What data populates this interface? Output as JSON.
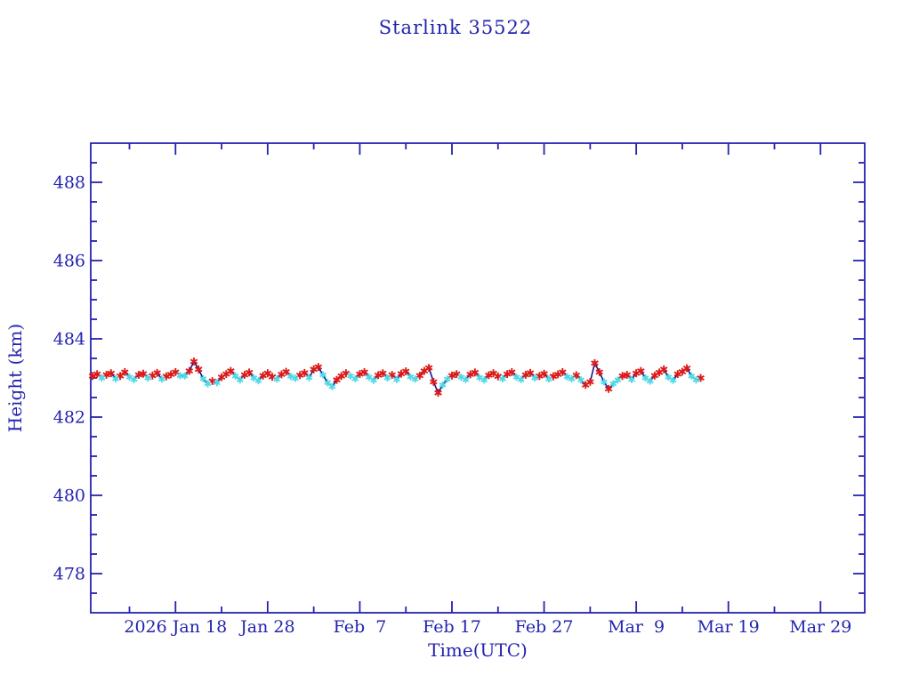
{
  "page": {
    "background": "#ffffff"
  },
  "chart_data": {
    "type": "line",
    "title": "Starlink 35522",
    "xlabel": "Time(UTC)",
    "ylabel": "Height (km)",
    "grid": false,
    "legend": null,
    "x_unit": "day of year 2026, UTC",
    "x_domain": [
      8.8,
      92.8
    ],
    "y_domain": [
      477,
      489
    ],
    "y_major_ticks": [
      478,
      480,
      482,
      484,
      486,
      488
    ],
    "y_minor_step": 0.5,
    "x_major_ticks": [
      {
        "t": 18,
        "label": "2026 Jan 18"
      },
      {
        "t": 28,
        "label": "Jan 28"
      },
      {
        "t": 38,
        "label": "Feb  7"
      },
      {
        "t": 48,
        "label": "Feb 17"
      },
      {
        "t": 58,
        "label": "Feb 27"
      },
      {
        "t": 68,
        "label": "Mar  9"
      },
      {
        "t": 78,
        "label": "Mar 19"
      },
      {
        "t": 88,
        "label": "Mar 29"
      }
    ],
    "x_minor_ticks": [
      13,
      23,
      33,
      43,
      53,
      63,
      73,
      83
    ],
    "style": {
      "frame_color": "#2323b0",
      "text_color": "#2323b0",
      "line_color": "#17178c",
      "background": "#ffffff"
    },
    "marker_colors": {
      "r": "#dc1a1a",
      "c": "#52d9e6"
    },
    "marker_shape": "asterisk",
    "series": [
      {
        "name": "measured height",
        "points_format": [
          "day_of_year_2026",
          "height_km",
          "marker_color_key"
        ],
        "points": [
          [
            9,
            483.05,
            "r"
          ],
          [
            9.5,
            483.1,
            "r"
          ],
          [
            10,
            483,
            "c"
          ],
          [
            10.5,
            483.08,
            "r"
          ],
          [
            11,
            483.12,
            "r"
          ],
          [
            11.5,
            482.98,
            "c"
          ],
          [
            12,
            483.05,
            "r"
          ],
          [
            12.5,
            483.15,
            "r"
          ],
          [
            13,
            483.02,
            "c"
          ],
          [
            13.5,
            482.96,
            "c"
          ],
          [
            14,
            483.08,
            "r"
          ],
          [
            14.5,
            483.11,
            "r"
          ],
          [
            15,
            483,
            "c"
          ],
          [
            15.5,
            483.06,
            "r"
          ],
          [
            16,
            483.13,
            "r"
          ],
          [
            16.5,
            482.97,
            "c"
          ],
          [
            17,
            483.04,
            "r"
          ],
          [
            17.5,
            483.09,
            "r"
          ],
          [
            18,
            483.15,
            "r"
          ],
          [
            18.5,
            483.06,
            "c"
          ],
          [
            19,
            483.05,
            "c"
          ],
          [
            19.5,
            483.18,
            "r"
          ],
          [
            20,
            483.42,
            "r"
          ],
          [
            20.5,
            483.22,
            "r"
          ],
          [
            21,
            482.98,
            "c"
          ],
          [
            21.5,
            482.85,
            "c"
          ],
          [
            22,
            482.92,
            "r"
          ],
          [
            22.5,
            482.88,
            "c"
          ],
          [
            23,
            483.02,
            "r"
          ],
          [
            23.5,
            483.1,
            "r"
          ],
          [
            24,
            483.18,
            "r"
          ],
          [
            24.5,
            483.05,
            "c"
          ],
          [
            25,
            482.95,
            "c"
          ],
          [
            25.5,
            483.08,
            "r"
          ],
          [
            26,
            483.14,
            "r"
          ],
          [
            26.5,
            483,
            "c"
          ],
          [
            27,
            482.93,
            "c"
          ],
          [
            27.5,
            483.06,
            "r"
          ],
          [
            28,
            483.12,
            "r"
          ],
          [
            28.5,
            483.03,
            "r"
          ],
          [
            29,
            482.97,
            "c"
          ],
          [
            29.5,
            483.09,
            "r"
          ],
          [
            30,
            483.16,
            "r"
          ],
          [
            30.5,
            483.04,
            "c"
          ],
          [
            31,
            482.99,
            "c"
          ],
          [
            31.5,
            483.07,
            "r"
          ],
          [
            32,
            483.13,
            "r"
          ],
          [
            32.5,
            483.01,
            "c"
          ],
          [
            33,
            483.22,
            "r"
          ],
          [
            33.5,
            483.28,
            "r"
          ],
          [
            34,
            483.08,
            "c"
          ],
          [
            34.5,
            482.88,
            "c"
          ],
          [
            35,
            482.78,
            "c"
          ],
          [
            35.5,
            482.95,
            "r"
          ],
          [
            36,
            483.05,
            "r"
          ],
          [
            36.5,
            483.12,
            "r"
          ],
          [
            37,
            483.05,
            "c"
          ],
          [
            37.5,
            482.98,
            "c"
          ],
          [
            38,
            483.1,
            "r"
          ],
          [
            38.5,
            483.15,
            "r"
          ],
          [
            39,
            483.02,
            "c"
          ],
          [
            39.5,
            482.94,
            "c"
          ],
          [
            40,
            483.07,
            "r"
          ],
          [
            40.5,
            483.12,
            "r"
          ],
          [
            41,
            483,
            "c"
          ],
          [
            41.5,
            483.08,
            "r"
          ],
          [
            42,
            482.96,
            "c"
          ],
          [
            42.5,
            483.11,
            "r"
          ],
          [
            43,
            483.17,
            "r"
          ],
          [
            43.5,
            483.03,
            "c"
          ],
          [
            44,
            482.97,
            "c"
          ],
          [
            44.5,
            483.06,
            "r"
          ],
          [
            45,
            483.18,
            "r"
          ],
          [
            45.5,
            483.26,
            "r"
          ],
          [
            46,
            482.9,
            "r"
          ],
          [
            46.5,
            482.62,
            "r"
          ],
          [
            47,
            482.82,
            "c"
          ],
          [
            47.5,
            482.97,
            "c"
          ],
          [
            48,
            483.06,
            "r"
          ],
          [
            48.5,
            483.1,
            "r"
          ],
          [
            49,
            483.02,
            "c"
          ],
          [
            49.5,
            482.96,
            "c"
          ],
          [
            50,
            483.09,
            "r"
          ],
          [
            50.5,
            483.14,
            "r"
          ],
          [
            51,
            483.01,
            "c"
          ],
          [
            51.5,
            482.95,
            "c"
          ],
          [
            52,
            483.07,
            "r"
          ],
          [
            52.5,
            483.12,
            "r"
          ],
          [
            53,
            483.04,
            "r"
          ],
          [
            53.5,
            482.98,
            "c"
          ],
          [
            54,
            483.1,
            "r"
          ],
          [
            54.5,
            483.15,
            "r"
          ],
          [
            55,
            483.02,
            "c"
          ],
          [
            55.5,
            482.96,
            "c"
          ],
          [
            56,
            483.08,
            "r"
          ],
          [
            56.5,
            483.13,
            "r"
          ],
          [
            57,
            483,
            "c"
          ],
          [
            57.5,
            483.05,
            "r"
          ],
          [
            58,
            483.11,
            "r"
          ],
          [
            58.5,
            482.97,
            "c"
          ],
          [
            59,
            483.04,
            "r"
          ],
          [
            59.5,
            483.09,
            "r"
          ],
          [
            60,
            483.15,
            "r"
          ],
          [
            60.5,
            483.03,
            "c"
          ],
          [
            61,
            482.98,
            "c"
          ],
          [
            61.5,
            483.07,
            "r"
          ],
          [
            62,
            482.95,
            "c"
          ],
          [
            62.5,
            482.82,
            "r"
          ],
          [
            63,
            482.9,
            "r"
          ],
          [
            63.5,
            483.38,
            "r"
          ],
          [
            64,
            483.15,
            "r"
          ],
          [
            64.5,
            482.9,
            "c"
          ],
          [
            65,
            482.72,
            "r"
          ],
          [
            65.5,
            482.85,
            "c"
          ],
          [
            66,
            482.95,
            "c"
          ],
          [
            66.5,
            483.05,
            "r"
          ],
          [
            67,
            483.08,
            "r"
          ],
          [
            67.5,
            482.96,
            "c"
          ],
          [
            68,
            483.12,
            "r"
          ],
          [
            68.5,
            483.18,
            "r"
          ],
          [
            69,
            483,
            "c"
          ],
          [
            69.5,
            482.92,
            "c"
          ],
          [
            70,
            483.06,
            "r"
          ],
          [
            70.5,
            483.14,
            "r"
          ],
          [
            71,
            483.22,
            "r"
          ],
          [
            71.5,
            483.02,
            "c"
          ],
          [
            72,
            482.94,
            "c"
          ],
          [
            72.5,
            483.1,
            "r"
          ],
          [
            73,
            483.16,
            "r"
          ],
          [
            73.5,
            483.25,
            "r"
          ],
          [
            74,
            483.05,
            "c"
          ],
          [
            74.5,
            482.95,
            "c"
          ],
          [
            75,
            483,
            "r"
          ]
        ]
      }
    ]
  }
}
